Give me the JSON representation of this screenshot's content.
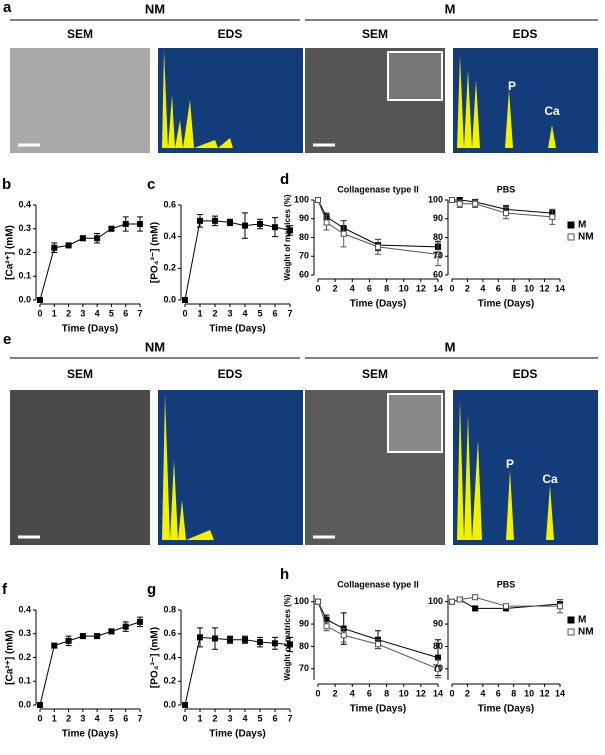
{
  "figure": {
    "a": {
      "label": "a",
      "groups": [
        {
          "title": "NM",
          "sub": [
            "SEM",
            "EDS"
          ]
        },
        {
          "title": "M",
          "sub": [
            "SEM",
            "EDS"
          ],
          "peaks": [
            "P",
            "Ca"
          ]
        }
      ]
    },
    "e": {
      "label": "e",
      "groups": [
        {
          "title": "NM",
          "sub": [
            "SEM",
            "EDS"
          ]
        },
        {
          "title": "M",
          "sub": [
            "SEM",
            "EDS"
          ],
          "peaks": [
            "P",
            "Ca"
          ]
        }
      ]
    }
  },
  "chart_data": [
    {
      "type": "line",
      "label": "b",
      "ylabel": "[Ca²⁺] (mM)",
      "xlabel": "Time (Days)",
      "x": [
        0,
        1,
        2,
        3,
        4,
        5,
        6,
        7
      ],
      "xlim": [
        0,
        7
      ],
      "xticks": [
        0,
        1,
        2,
        3,
        4,
        5,
        6,
        7
      ],
      "ylim": [
        0,
        0.4
      ],
      "yticks": [
        {
          "value": 0,
          "label": "0.0"
        },
        0.1,
        0.2,
        0.3,
        0.4
      ],
      "series": [
        {
          "color": "#000",
          "marker_fill": "#000",
          "values": [
            0,
            0.22,
            0.23,
            0.26,
            0.26,
            0.3,
            0.32,
            0.32
          ],
          "errors": [
            0,
            0.02,
            0.01,
            0.01,
            0.02,
            0.01,
            0.03,
            0.03
          ]
        }
      ]
    },
    {
      "type": "line",
      "label": "c",
      "ylabel": "[PO₄³⁻] (mM)",
      "xlabel": "Time (Days)",
      "x": [
        0,
        1,
        2,
        3,
        4,
        5,
        6,
        7
      ],
      "xlim": [
        0,
        7
      ],
      "xticks": [
        0,
        1,
        2,
        3,
        4,
        5,
        6,
        7
      ],
      "ylim": [
        0,
        0.6
      ],
      "yticks": [
        {
          "value": 0,
          "label": "0.0"
        },
        0.2,
        0.4,
        0.6
      ],
      "series": [
        {
          "color": "#000",
          "marker_fill": "#000",
          "values": [
            0,
            0.5,
            0.5,
            0.49,
            0.47,
            0.48,
            0.46,
            0.44
          ],
          "errors": [
            0,
            0.04,
            0.03,
            0.02,
            0.08,
            0.03,
            0.06,
            0.03
          ]
        }
      ]
    },
    {
      "type": "line",
      "label": "d",
      "title": "Collagenase type II",
      "ylabel": "Weight of matrices (%)",
      "xlabel": "Time (Days)",
      "x": [
        0,
        1,
        3,
        7,
        14
      ],
      "xlim": [
        0,
        14
      ],
      "xticks": [
        0,
        2,
        4,
        6,
        8,
        10,
        12,
        14
      ],
      "ylim": [
        60,
        100
      ],
      "yticks": [
        60,
        70,
        80,
        90,
        100
      ],
      "series": [
        {
          "name": "M",
          "color": "#000",
          "marker_fill": "#000",
          "values": [
            100,
            91,
            85,
            76,
            75
          ],
          "errors": [
            0,
            2,
            4,
            3,
            3
          ]
        },
        {
          "name": "NM",
          "color": "#555",
          "marker_fill": "#fff",
          "values": [
            100,
            88,
            82,
            75,
            71
          ],
          "errors": [
            0,
            4,
            7,
            4,
            6
          ]
        }
      ]
    },
    {
      "type": "line",
      "title": "PBS",
      "xlabel": "Time (Days)",
      "x": [
        0,
        1,
        3,
        7,
        13
      ],
      "xlim": [
        0,
        14
      ],
      "xticks": [
        0,
        2,
        4,
        6,
        8,
        10,
        12,
        14
      ],
      "ylim": [
        60,
        100
      ],
      "yticks": [
        60,
        70,
        80,
        90,
        100
      ],
      "legend": "right",
      "series": [
        {
          "name": "M",
          "color": "#000",
          "marker_fill": "#000",
          "values": [
            100,
            100,
            99,
            95,
            93
          ],
          "errors": [
            0,
            1,
            1,
            2,
            2
          ]
        },
        {
          "name": "NM",
          "color": "#555",
          "marker_fill": "#fff",
          "values": [
            100,
            98,
            98,
            93,
            91
          ],
          "errors": [
            0,
            2,
            2,
            3,
            4
          ]
        }
      ]
    },
    {
      "type": "line",
      "label": "f",
      "ylabel": "[Ca²⁺] (mM)",
      "xlabel": "Time (Days)",
      "x": [
        0,
        1,
        2,
        3,
        4,
        5,
        6,
        7
      ],
      "xlim": [
        0,
        7
      ],
      "xticks": [
        0,
        1,
        2,
        3,
        4,
        5,
        6,
        7
      ],
      "ylim": [
        0,
        0.4
      ],
      "yticks": [
        {
          "value": 0,
          "label": "0.0"
        },
        0.1,
        0.2,
        0.3,
        0.4
      ],
      "series": [
        {
          "color": "#000",
          "marker_fill": "#000",
          "values": [
            0,
            0.25,
            0.27,
            0.29,
            0.29,
            0.31,
            0.33,
            0.35
          ],
          "errors": [
            0,
            0.01,
            0.02,
            0.01,
            0.01,
            0.01,
            0.02,
            0.02
          ]
        }
      ]
    },
    {
      "type": "line",
      "label": "g",
      "ylabel": "[PO₄³⁻] (mM)",
      "xlabel": "Time (Days)",
      "x": [
        0,
        1,
        2,
        3,
        4,
        5,
        6,
        7
      ],
      "xlim": [
        0,
        7
      ],
      "xticks": [
        0,
        1,
        2,
        3,
        4,
        5,
        6,
        7
      ],
      "ylim": [
        0,
        0.8
      ],
      "yticks": [
        {
          "value": 0,
          "label": "0.0"
        },
        0.2,
        0.4,
        0.6,
        0.8
      ],
      "series": [
        {
          "color": "#000",
          "marker_fill": "#000",
          "values": [
            0,
            0.57,
            0.56,
            0.55,
            0.55,
            0.53,
            0.52,
            0.51
          ],
          "errors": [
            0,
            0.08,
            0.09,
            0.03,
            0.03,
            0.04,
            0.05,
            0.06
          ]
        }
      ]
    },
    {
      "type": "line",
      "label": "h",
      "title": "Collagenase type II",
      "ylabel": "Weight of matrices (%)",
      "xlabel": "Time (Days)",
      "x": [
        0,
        1,
        3,
        7,
        14
      ],
      "xlim": [
        0,
        14
      ],
      "xticks": [
        0,
        2,
        4,
        6,
        8,
        10,
        12,
        14
      ],
      "ylim": [
        65,
        103
      ],
      "yticks": [
        70,
        80,
        90,
        100
      ],
      "series": [
        {
          "name": "M",
          "color": "#000",
          "marker_fill": "#000",
          "values": [
            100,
            92,
            88,
            83,
            75
          ],
          "errors": [
            0,
            2,
            7,
            4,
            8
          ]
        },
        {
          "name": "NM",
          "color": "#555",
          "marker_fill": "#fff",
          "values": [
            100,
            89,
            85,
            81,
            70
          ],
          "errors": [
            0,
            2,
            3,
            2,
            4
          ]
        }
      ]
    },
    {
      "type": "line",
      "title": "PBS",
      "xlabel": "Time (Days)",
      "x": [
        0,
        1,
        3,
        7,
        14
      ],
      "xlim": [
        0,
        14
      ],
      "xticks": [
        0,
        2,
        4,
        6,
        8,
        10,
        12,
        14
      ],
      "ylim": [
        65,
        103
      ],
      "yticks": [
        70,
        80,
        90,
        100
      ],
      "legend": "right",
      "series": [
        {
          "name": "M",
          "color": "#000",
          "marker_fill": "#000",
          "values": [
            100,
            101,
            97,
            97,
            99
          ],
          "errors": [
            0,
            1,
            1,
            1,
            2
          ]
        },
        {
          "name": "NM",
          "color": "#555",
          "marker_fill": "#fff",
          "values": [
            100,
            101,
            102,
            98,
            98
          ],
          "errors": [
            0,
            1,
            1,
            1,
            3
          ]
        }
      ]
    }
  ]
}
